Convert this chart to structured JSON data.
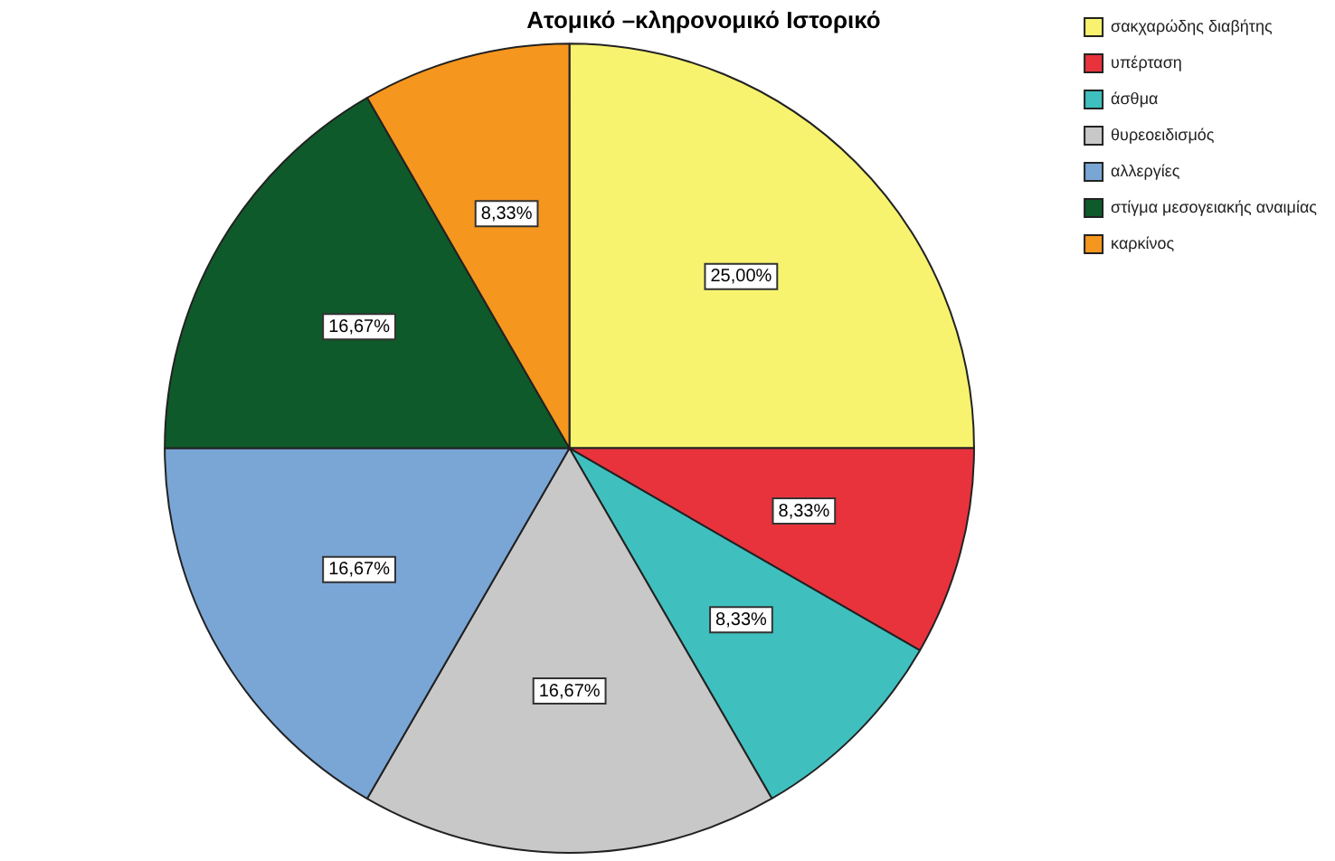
{
  "chart_data": {
    "type": "pie",
    "title": "Ατομικό –κληρονομικό Ιστορικό",
    "categories": [
      "σακχαρώδης διαβήτης",
      "υπέρταση",
      "άσθμα",
      "θυρεοειδισμός",
      "αλλεργίες",
      "στίγμα μεσογειακής αναιμίας",
      "καρκίνος"
    ],
    "values": [
      25,
      8.33,
      8.33,
      16.67,
      16.67,
      16.67,
      8.33
    ],
    "value_labels": [
      "25,00%",
      "8,33%",
      "8,33%",
      "16,67%",
      "16,67%",
      "16,67%",
      "8,33%"
    ],
    "colors": [
      "#f7f36e",
      "#e8333c",
      "#40bfbf",
      "#c8c8c8",
      "#7aa6d6",
      "#0f5a2a",
      "#f5961e"
    ],
    "legend": "top right"
  }
}
